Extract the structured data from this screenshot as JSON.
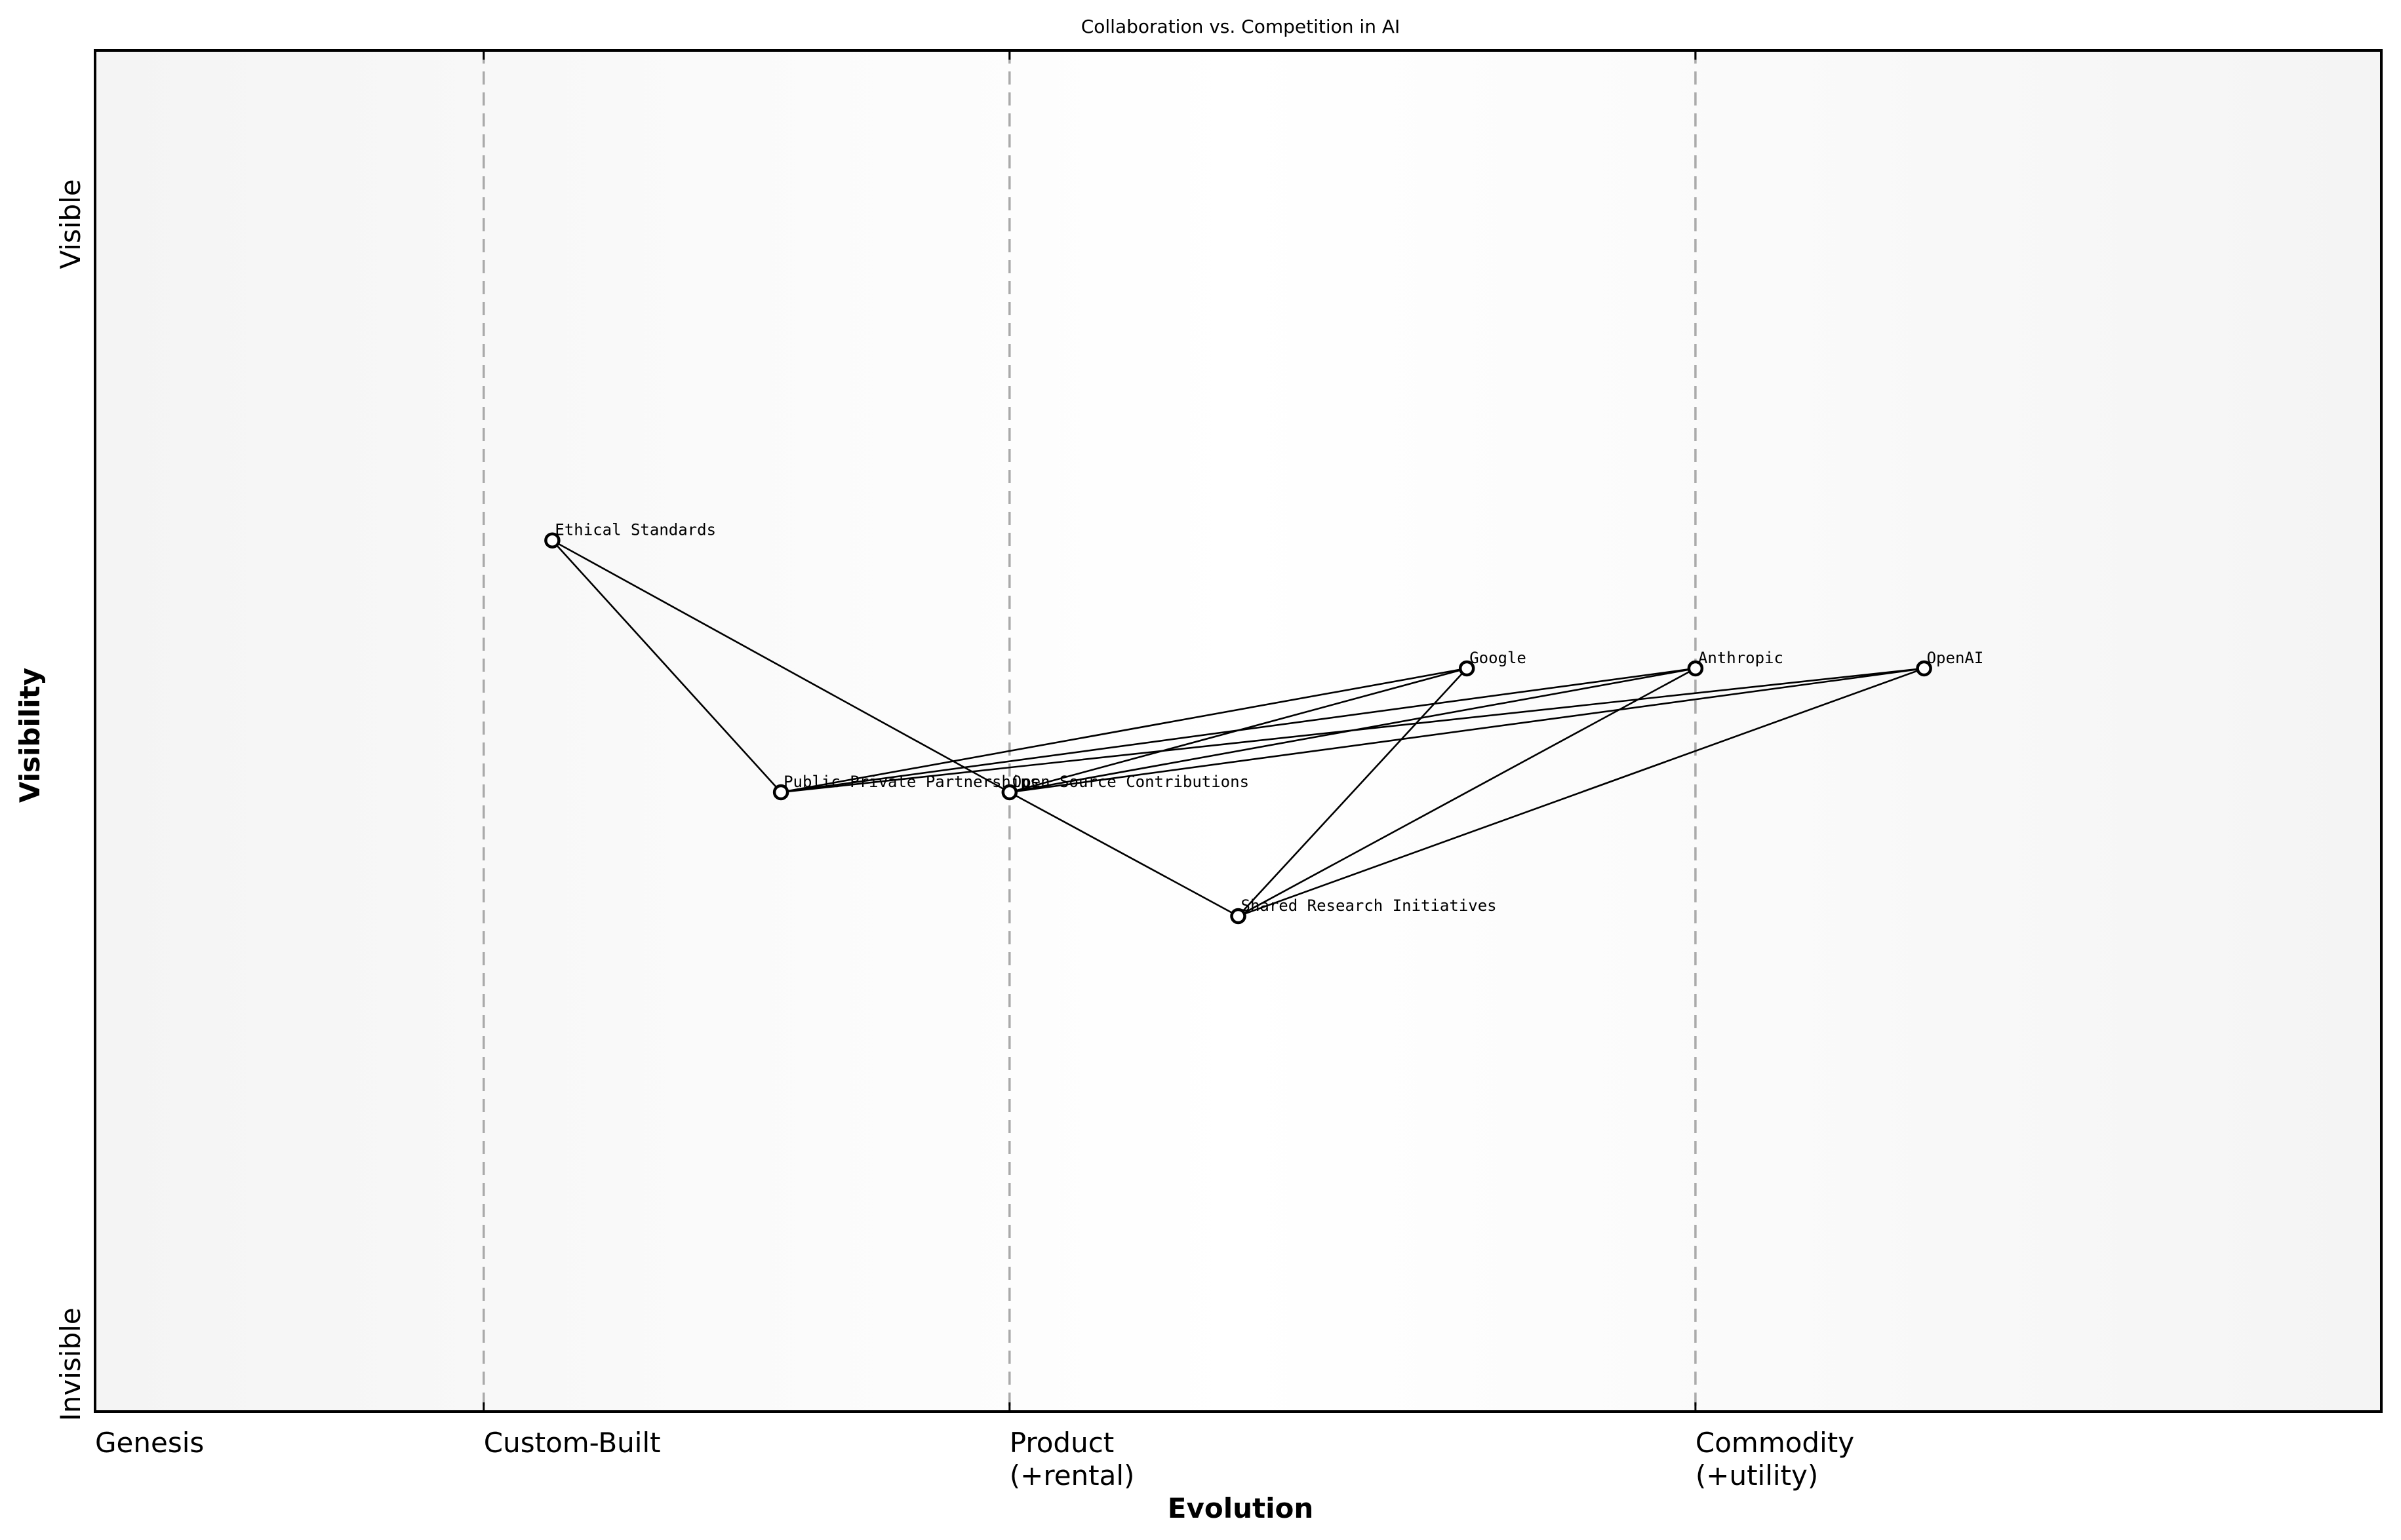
{
  "title": "Collaboration vs. Competition in AI",
  "x_axis": {
    "title": "Evolution",
    "stages": [
      {
        "label_line1": "Genesis",
        "label_line2": "",
        "x": 0.0
      },
      {
        "label_line1": "Custom-Built",
        "label_line2": "",
        "x": 0.17
      },
      {
        "label_line1": "Product",
        "label_line2": "(+rental)",
        "x": 0.4
      },
      {
        "label_line1": "Commodity",
        "label_line2": "(+utility)",
        "x": 0.7
      }
    ]
  },
  "y_axis": {
    "title": "Visibility",
    "top_label": "Visible",
    "bottom_label": "Invisible"
  },
  "colors": {
    "background_edge": "#f4f4f4",
    "background_center": "#ffffff",
    "stage_line": "#aaaaaa",
    "node_fill": "#ffffff",
    "node_stroke": "#000000",
    "edge": "#000000"
  },
  "chart_data": {
    "type": "wardley-map",
    "title": "Collaboration vs. Competition in AI",
    "xlabel": "Evolution",
    "ylabel": "Visibility",
    "xlim": [
      0,
      1
    ],
    "ylim": [
      0,
      1
    ],
    "x_stage_boundaries": [
      0.17,
      0.4,
      0.7
    ],
    "x_tick_labels": [
      "Genesis",
      "Custom-Built",
      "Product (+rental)",
      "Commodity (+utility)"
    ],
    "y_tick_labels": [
      "Invisible",
      "Visible"
    ],
    "nodes": [
      {
        "id": "ethical",
        "label": "Ethical Standards",
        "x": 0.2,
        "y": 0.64
      },
      {
        "id": "ppp",
        "label": "Public Private Partnerships",
        "x": 0.3,
        "y": 0.455
      },
      {
        "id": "osc",
        "label": "Open Source Contributions",
        "x": 0.4,
        "y": 0.455
      },
      {
        "id": "sri",
        "label": "Shared Research Initiatives",
        "x": 0.5,
        "y": 0.364
      },
      {
        "id": "google",
        "label": "Google",
        "x": 0.6,
        "y": 0.546
      },
      {
        "id": "anthropic",
        "label": "Anthropic",
        "x": 0.7,
        "y": 0.546
      },
      {
        "id": "openai",
        "label": "OpenAI",
        "x": 0.8,
        "y": 0.546
      }
    ],
    "edges": [
      [
        "ethical",
        "ppp"
      ],
      [
        "ethical",
        "osc"
      ],
      [
        "ppp",
        "google"
      ],
      [
        "ppp",
        "anthropic"
      ],
      [
        "ppp",
        "openai"
      ],
      [
        "osc",
        "google"
      ],
      [
        "osc",
        "anthropic"
      ],
      [
        "osc",
        "openai"
      ],
      [
        "osc",
        "sri"
      ],
      [
        "sri",
        "google"
      ],
      [
        "sri",
        "anthropic"
      ],
      [
        "sri",
        "openai"
      ]
    ]
  }
}
